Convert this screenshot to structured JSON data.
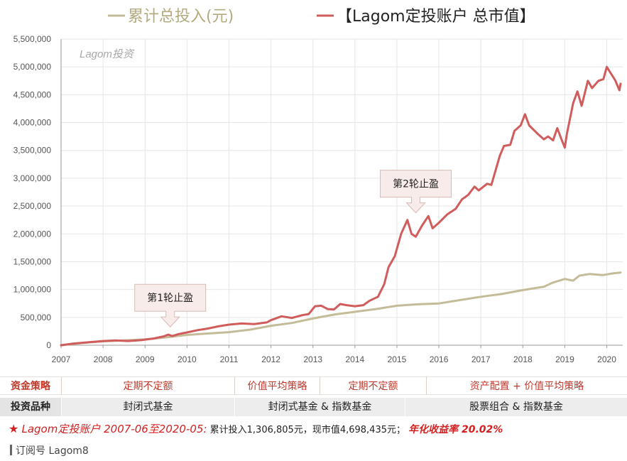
{
  "chart_data": {
    "type": "line",
    "watermark": "Lagom投资",
    "ylim": [
      0,
      5500000
    ],
    "yticks": [
      0,
      500000,
      1000000,
      1500000,
      2000000,
      2500000,
      3000000,
      3500000,
      4000000,
      4500000,
      5000000,
      5500000
    ],
    "ytick_labels": [
      "0",
      "500,000",
      "1,000,000",
      "1,500,000",
      "2,000,000",
      "2,500,000",
      "3,000,000",
      "3,500,000",
      "4,000,000",
      "4,500,000",
      "5,000,000",
      "5,500,000"
    ],
    "xlim": [
      2007.0,
      2020.38
    ],
    "xticks": [
      2007,
      2008,
      2009,
      2010,
      2011,
      2012,
      2013,
      2014,
      2015,
      2016,
      2017,
      2018,
      2019,
      2020
    ],
    "xtick_labels": [
      "2007",
      "2008",
      "2009",
      "2010",
      "2011",
      "2012",
      "2013",
      "2014",
      "2015",
      "2016",
      "2017",
      "2018",
      "2019",
      "2020"
    ],
    "grid": true,
    "legend_position": "top",
    "series": [
      {
        "name": "累计总投入(元)",
        "color": "#c4bc98",
        "points": [
          [
            2007.0,
            0
          ],
          [
            2007.5,
            40000
          ],
          [
            2008.0,
            70000
          ],
          [
            2008.5,
            85000
          ],
          [
            2009.0,
            105000
          ],
          [
            2009.5,
            140000
          ],
          [
            2010.0,
            185000
          ],
          [
            2010.5,
            210000
          ],
          [
            2011.0,
            235000
          ],
          [
            2011.5,
            280000
          ],
          [
            2012.0,
            350000
          ],
          [
            2012.5,
            400000
          ],
          [
            2013.0,
            480000
          ],
          [
            2013.5,
            550000
          ],
          [
            2014.0,
            600000
          ],
          [
            2014.5,
            650000
          ],
          [
            2015.0,
            710000
          ],
          [
            2015.5,
            735000
          ],
          [
            2016.0,
            750000
          ],
          [
            2016.5,
            810000
          ],
          [
            2017.0,
            870000
          ],
          [
            2017.5,
            920000
          ],
          [
            2018.0,
            990000
          ],
          [
            2018.5,
            1050000
          ],
          [
            2018.7,
            1120000
          ],
          [
            2019.0,
            1190000
          ],
          [
            2019.2,
            1160000
          ],
          [
            2019.35,
            1250000
          ],
          [
            2019.6,
            1280000
          ],
          [
            2019.9,
            1260000
          ],
          [
            2020.1,
            1285000
          ],
          [
            2020.33,
            1306805
          ]
        ]
      },
      {
        "name": "【Lagom定投账户 总市值】",
        "color": "#d05c5c",
        "points": [
          [
            2007.0,
            0
          ],
          [
            2007.3,
            30000
          ],
          [
            2007.6,
            50000
          ],
          [
            2008.0,
            75000
          ],
          [
            2008.3,
            85000
          ],
          [
            2008.6,
            75000
          ],
          [
            2008.9,
            90000
          ],
          [
            2009.2,
            120000
          ],
          [
            2009.45,
            160000
          ],
          [
            2009.55,
            190000
          ],
          [
            2009.65,
            165000
          ],
          [
            2009.8,
            200000
          ],
          [
            2010.0,
            230000
          ],
          [
            2010.25,
            270000
          ],
          [
            2010.5,
            300000
          ],
          [
            2010.75,
            340000
          ],
          [
            2011.0,
            370000
          ],
          [
            2011.3,
            390000
          ],
          [
            2011.6,
            380000
          ],
          [
            2011.9,
            410000
          ],
          [
            2012.0,
            450000
          ],
          [
            2012.25,
            520000
          ],
          [
            2012.5,
            490000
          ],
          [
            2012.75,
            540000
          ],
          [
            2012.9,
            560000
          ],
          [
            2013.05,
            700000
          ],
          [
            2013.2,
            710000
          ],
          [
            2013.35,
            650000
          ],
          [
            2013.5,
            640000
          ],
          [
            2013.65,
            740000
          ],
          [
            2013.8,
            720000
          ],
          [
            2014.0,
            700000
          ],
          [
            2014.2,
            720000
          ],
          [
            2014.35,
            800000
          ],
          [
            2014.55,
            870000
          ],
          [
            2014.7,
            1100000
          ],
          [
            2014.8,
            1400000
          ],
          [
            2014.95,
            1600000
          ],
          [
            2015.1,
            2000000
          ],
          [
            2015.25,
            2250000
          ],
          [
            2015.35,
            2000000
          ],
          [
            2015.45,
            1950000
          ],
          [
            2015.6,
            2150000
          ],
          [
            2015.75,
            2320000
          ],
          [
            2015.85,
            2100000
          ],
          [
            2016.0,
            2200000
          ],
          [
            2016.2,
            2350000
          ],
          [
            2016.4,
            2450000
          ],
          [
            2016.55,
            2620000
          ],
          [
            2016.7,
            2700000
          ],
          [
            2016.85,
            2850000
          ],
          [
            2016.95,
            2780000
          ],
          [
            2017.15,
            2900000
          ],
          [
            2017.25,
            2880000
          ],
          [
            2017.45,
            3400000
          ],
          [
            2017.55,
            3580000
          ],
          [
            2017.7,
            3600000
          ],
          [
            2017.8,
            3850000
          ],
          [
            2017.95,
            3950000
          ],
          [
            2018.05,
            4150000
          ],
          [
            2018.15,
            3950000
          ],
          [
            2018.35,
            3800000
          ],
          [
            2018.5,
            3700000
          ],
          [
            2018.6,
            3750000
          ],
          [
            2018.72,
            3680000
          ],
          [
            2018.82,
            3900000
          ],
          [
            2018.92,
            3700000
          ],
          [
            2019.0,
            3550000
          ],
          [
            2019.05,
            3800000
          ],
          [
            2019.2,
            4350000
          ],
          [
            2019.3,
            4560000
          ],
          [
            2019.4,
            4300000
          ],
          [
            2019.55,
            4750000
          ],
          [
            2019.65,
            4620000
          ],
          [
            2019.8,
            4750000
          ],
          [
            2019.92,
            4780000
          ],
          [
            2020.0,
            5000000
          ],
          [
            2020.2,
            4760000
          ],
          [
            2020.3,
            4580000
          ],
          [
            2020.33,
            4698435
          ]
        ]
      }
    ],
    "annotations": [
      {
        "text": "第1轮止盈",
        "x": 2009.6,
        "y": 150000
      },
      {
        "text": "第2轮止盈",
        "x": 2015.45,
        "y": 2200000
      }
    ]
  },
  "table": {
    "rows": [
      {
        "header": "资金策略",
        "cells": [
          "定期不定额",
          "价值平均策略",
          "定期不定额",
          "资产配置 + 价值平均策略"
        ]
      },
      {
        "header": "投资品种",
        "cells": [
          "封闭式基金",
          "封闭式基金 & 指数基金",
          "股票组合 & 指数基金"
        ]
      }
    ]
  },
  "summary": {
    "star": "★",
    "title": "Lagom定投账户 2007-06至2020-05:",
    "body": "累计投入1,306,805元，现市值4,698,435元；",
    "highlight": "年化收益率 20.02%"
  },
  "footer": {
    "label": "订阅号 Lagom8"
  }
}
